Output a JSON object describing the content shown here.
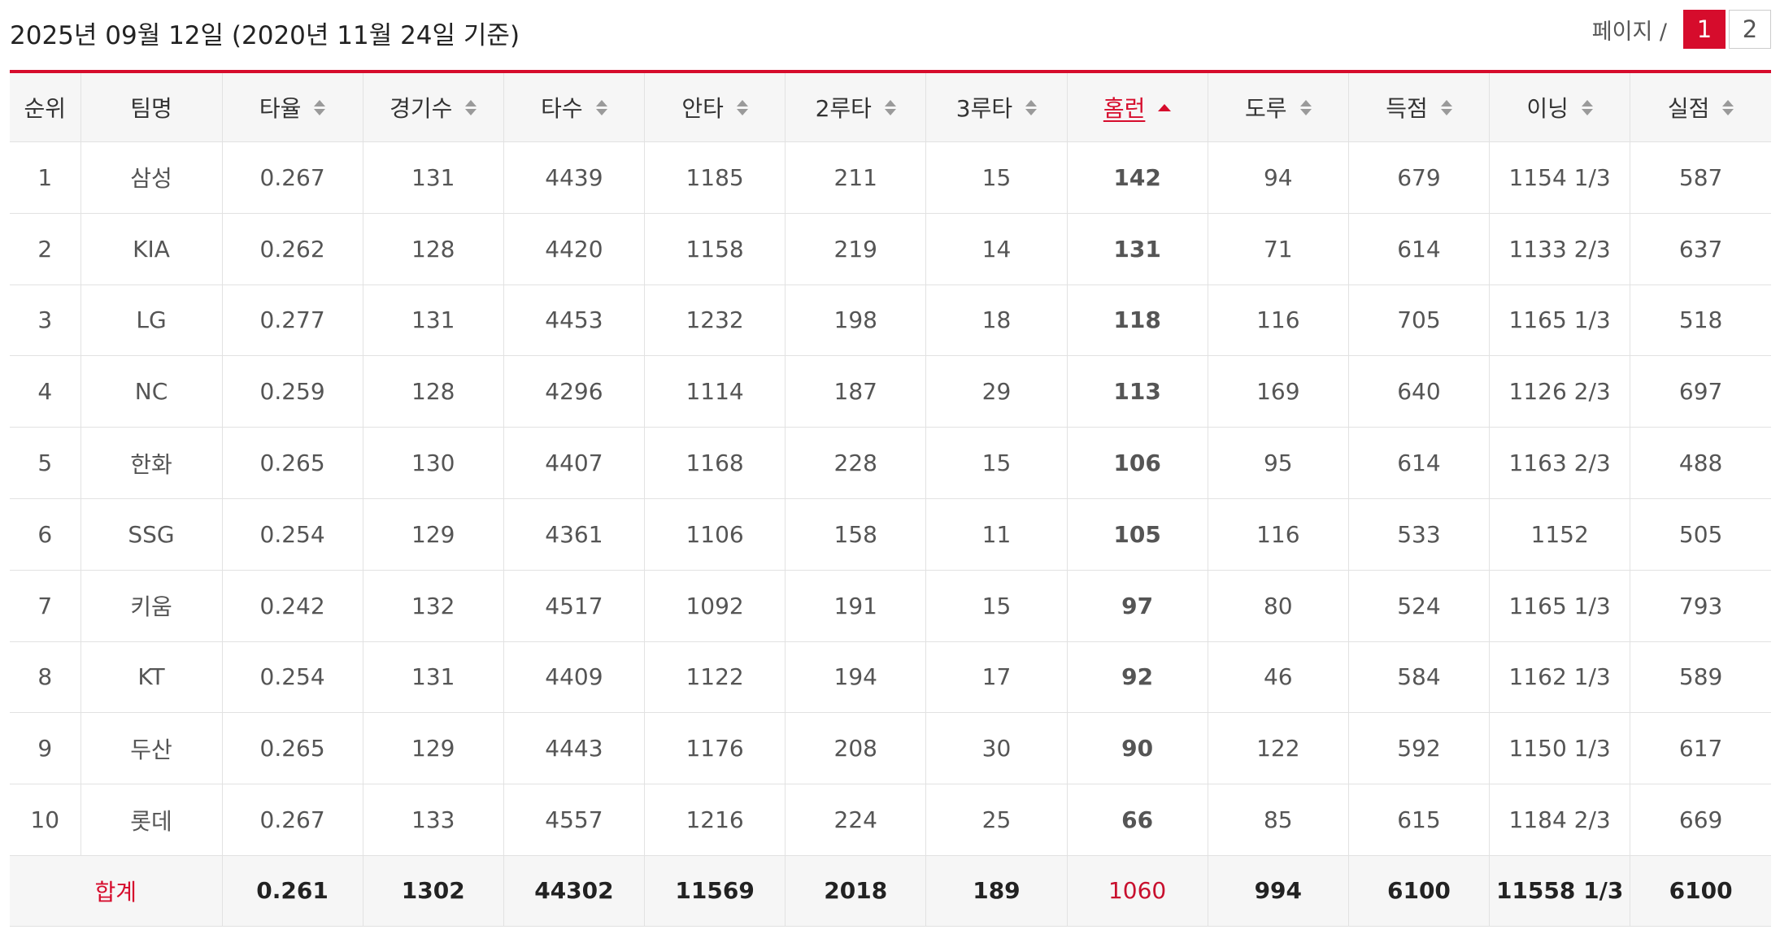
{
  "header": {
    "date": "2025년 09월 12일 (2020년 11월 24일 기준)",
    "pager_label": "페이지 /",
    "pages": [
      "1",
      "2"
    ],
    "current_page": "1"
  },
  "colors": {
    "accent": "#d60c2c",
    "home_run_text": "#c8102e",
    "header_bg": "#f6f6f6",
    "border": "#e2e2e2"
  },
  "table": {
    "headers": [
      "순위",
      "팀명",
      "타율",
      "경기수",
      "타수",
      "안타",
      "2루타",
      "3루타",
      "홈런",
      "도루",
      "득점",
      "이닝",
      "실점"
    ],
    "sorted_column": "홈런",
    "sort_direction": "ascending-icon",
    "rows": [
      [
        "1",
        "삼성",
        "0.267",
        "131",
        "4439",
        "1185",
        "211",
        "15",
        "142",
        "94",
        "679",
        "1154 1/3",
        "587"
      ],
      [
        "2",
        "KIA",
        "0.262",
        "128",
        "4420",
        "1158",
        "219",
        "14",
        "131",
        "71",
        "614",
        "1133 2/3",
        "637"
      ],
      [
        "3",
        "LG",
        "0.277",
        "131",
        "4453",
        "1232",
        "198",
        "18",
        "118",
        "116",
        "705",
        "1165 1/3",
        "518"
      ],
      [
        "4",
        "NC",
        "0.259",
        "128",
        "4296",
        "1114",
        "187",
        "29",
        "113",
        "169",
        "640",
        "1126 2/3",
        "697"
      ],
      [
        "5",
        "한화",
        "0.265",
        "130",
        "4407",
        "1168",
        "228",
        "15",
        "106",
        "95",
        "614",
        "1163 2/3",
        "488"
      ],
      [
        "6",
        "SSG",
        "0.254",
        "129",
        "4361",
        "1106",
        "158",
        "11",
        "105",
        "116",
        "533",
        "1152",
        "505"
      ],
      [
        "7",
        "키움",
        "0.242",
        "132",
        "4517",
        "1092",
        "191",
        "15",
        "97",
        "80",
        "524",
        "1165 1/3",
        "793"
      ],
      [
        "8",
        "KT",
        "0.254",
        "131",
        "4409",
        "1122",
        "194",
        "17",
        "92",
        "46",
        "584",
        "1162 1/3",
        "589"
      ],
      [
        "9",
        "두산",
        "0.265",
        "129",
        "4443",
        "1176",
        "208",
        "30",
        "90",
        "122",
        "592",
        "1150 1/3",
        "617"
      ],
      [
        "10",
        "롯데",
        "0.267",
        "133",
        "4557",
        "1216",
        "224",
        "25",
        "66",
        "85",
        "615",
        "1184 2/3",
        "669"
      ]
    ],
    "total": {
      "label": "합계",
      "values": [
        "0.261",
        "1302",
        "44302",
        "11569",
        "2018",
        "189",
        "1060",
        "994",
        "6100",
        "11558 1/3",
        "6100"
      ]
    }
  }
}
